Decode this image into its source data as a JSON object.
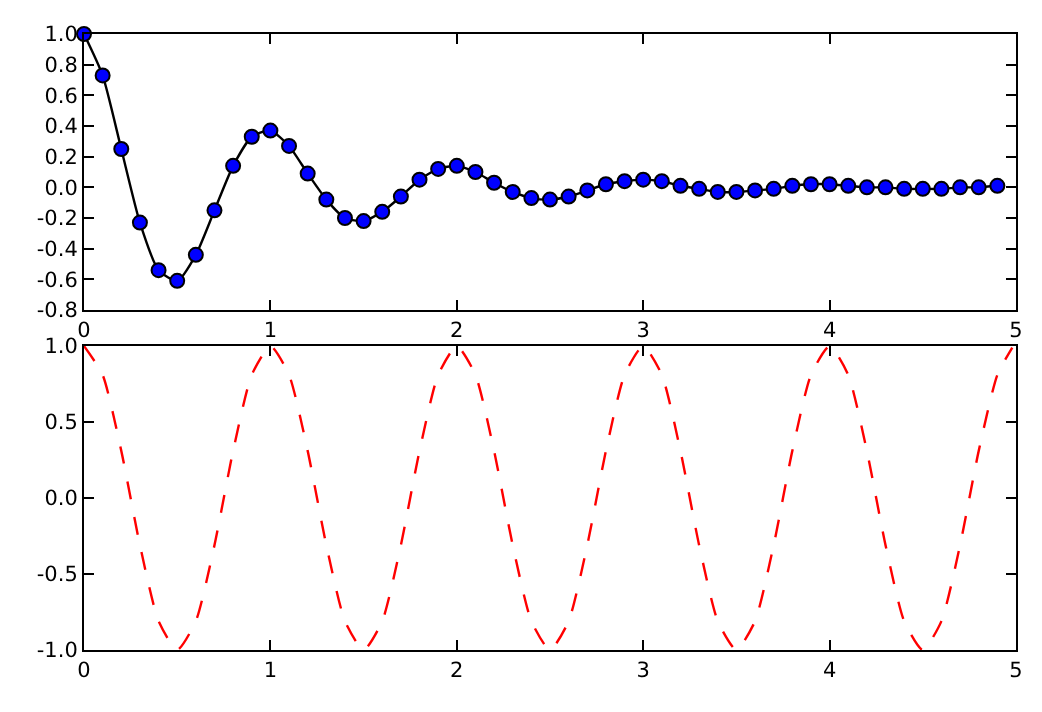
{
  "chart_data": [
    {
      "type": "line",
      "x": [
        0,
        0.1,
        0.2,
        0.3,
        0.4,
        0.5,
        0.6,
        0.7,
        0.8,
        0.9,
        1.0,
        1.1,
        1.2,
        1.3,
        1.4,
        1.5,
        1.6,
        1.7,
        1.8,
        1.9,
        2.0,
        2.1,
        2.2,
        2.3,
        2.4,
        2.5,
        2.6,
        2.7,
        2.8,
        2.9,
        3.0,
        3.1,
        3.2,
        3.3,
        3.4,
        3.5,
        3.6,
        3.7,
        3.8,
        3.9,
        4.0,
        4.1,
        4.2,
        4.3,
        4.4,
        4.5,
        4.6,
        4.7,
        4.8,
        4.9
      ],
      "series": [
        {
          "type": "line",
          "color": "#000000",
          "marker": "none",
          "line_style": "solid",
          "values": [
            1.0,
            0.73,
            0.25,
            -0.23,
            -0.54,
            -0.61,
            -0.44,
            -0.15,
            0.14,
            0.33,
            0.37,
            0.27,
            0.09,
            -0.08,
            -0.2,
            -0.22,
            -0.16,
            -0.06,
            0.05,
            0.12,
            0.14,
            0.1,
            0.03,
            -0.03,
            -0.07,
            -0.08,
            -0.06,
            -0.02,
            0.02,
            0.04,
            0.05,
            0.04,
            0.01,
            -0.01,
            -0.03,
            -0.03,
            -0.02,
            -0.01,
            0.01,
            0.02,
            0.02,
            0.01,
            0.0,
            0.0,
            -0.01,
            -0.01,
            -0.01,
            0.0,
            0.0,
            0.01
          ]
        },
        {
          "type": "scatter",
          "color": "#0000ff",
          "marker": "circle",
          "values": [
            1.0,
            0.73,
            0.25,
            -0.23,
            -0.54,
            -0.61,
            -0.44,
            -0.15,
            0.14,
            0.33,
            0.37,
            0.27,
            0.09,
            -0.08,
            -0.2,
            -0.22,
            -0.16,
            -0.06,
            0.05,
            0.12,
            0.14,
            0.1,
            0.03,
            -0.03,
            -0.07,
            -0.08,
            -0.06,
            -0.02,
            0.02,
            0.04,
            0.05,
            0.04,
            0.01,
            -0.01,
            -0.03,
            -0.03,
            -0.02,
            -0.01,
            0.01,
            0.02,
            0.02,
            0.01,
            0.0,
            0.0,
            -0.01,
            -0.01,
            -0.01,
            0.0,
            0.0,
            0.01
          ]
        }
      ],
      "xlim": [
        0,
        5
      ],
      "xticks": [
        0,
        1,
        2,
        3,
        4,
        5
      ],
      "ylim": [
        -0.8,
        1.0
      ],
      "yticks": [
        -0.8,
        -0.6,
        -0.4,
        -0.2,
        {
          "value": 0,
          "label": "0.0"
        },
        0.2,
        0.4,
        0.6,
        0.8,
        {
          "value": 1,
          "label": "1.0"
        }
      ],
      "grid": false
    },
    {
      "type": "line",
      "x": [
        0,
        0.1,
        0.2,
        0.3,
        0.4,
        0.5,
        0.6,
        0.7,
        0.8,
        0.9,
        1.0,
        1.1,
        1.2,
        1.3,
        1.4,
        1.5,
        1.6,
        1.7,
        1.8,
        1.9,
        2.0,
        2.1,
        2.2,
        2.3,
        2.4,
        2.5,
        2.6,
        2.7,
        2.8,
        2.9,
        3.0,
        3.1,
        3.2,
        3.3,
        3.4,
        3.5,
        3.6,
        3.7,
        3.8,
        3.9,
        4.0,
        4.1,
        4.2,
        4.3,
        4.4,
        4.5,
        4.6,
        4.7,
        4.8,
        4.9,
        4.98
      ],
      "series": [
        {
          "type": "line",
          "color": "#ff0000",
          "marker": "none",
          "line_style": "dashed",
          "values": [
            1,
            0.81,
            0.31,
            -0.31,
            -0.81,
            -1,
            -0.81,
            -0.31,
            0.31,
            0.81,
            1,
            0.81,
            0.31,
            -0.31,
            -0.81,
            -1,
            -0.81,
            -0.31,
            0.31,
            0.81,
            1,
            0.81,
            0.31,
            -0.31,
            -0.81,
            -1,
            -0.81,
            -0.31,
            0.31,
            0.81,
            1,
            0.81,
            0.31,
            -0.31,
            -0.81,
            -1,
            -0.81,
            -0.31,
            0.31,
            0.81,
            1,
            0.81,
            0.31,
            -0.31,
            -0.81,
            -1,
            -0.81,
            -0.31,
            0.31,
            0.81,
            0.99
          ]
        }
      ],
      "xlim": [
        0,
        5
      ],
      "xticks": [
        0,
        1,
        2,
        3,
        4,
        5
      ],
      "ylim": [
        -1,
        1
      ],
      "yticks": [
        {
          "value": -1,
          "label": "-1.0"
        },
        -0.5,
        {
          "value": 0,
          "label": "0.0"
        },
        0.5,
        {
          "value": 1,
          "label": "1.0"
        }
      ],
      "grid": false
    }
  ]
}
